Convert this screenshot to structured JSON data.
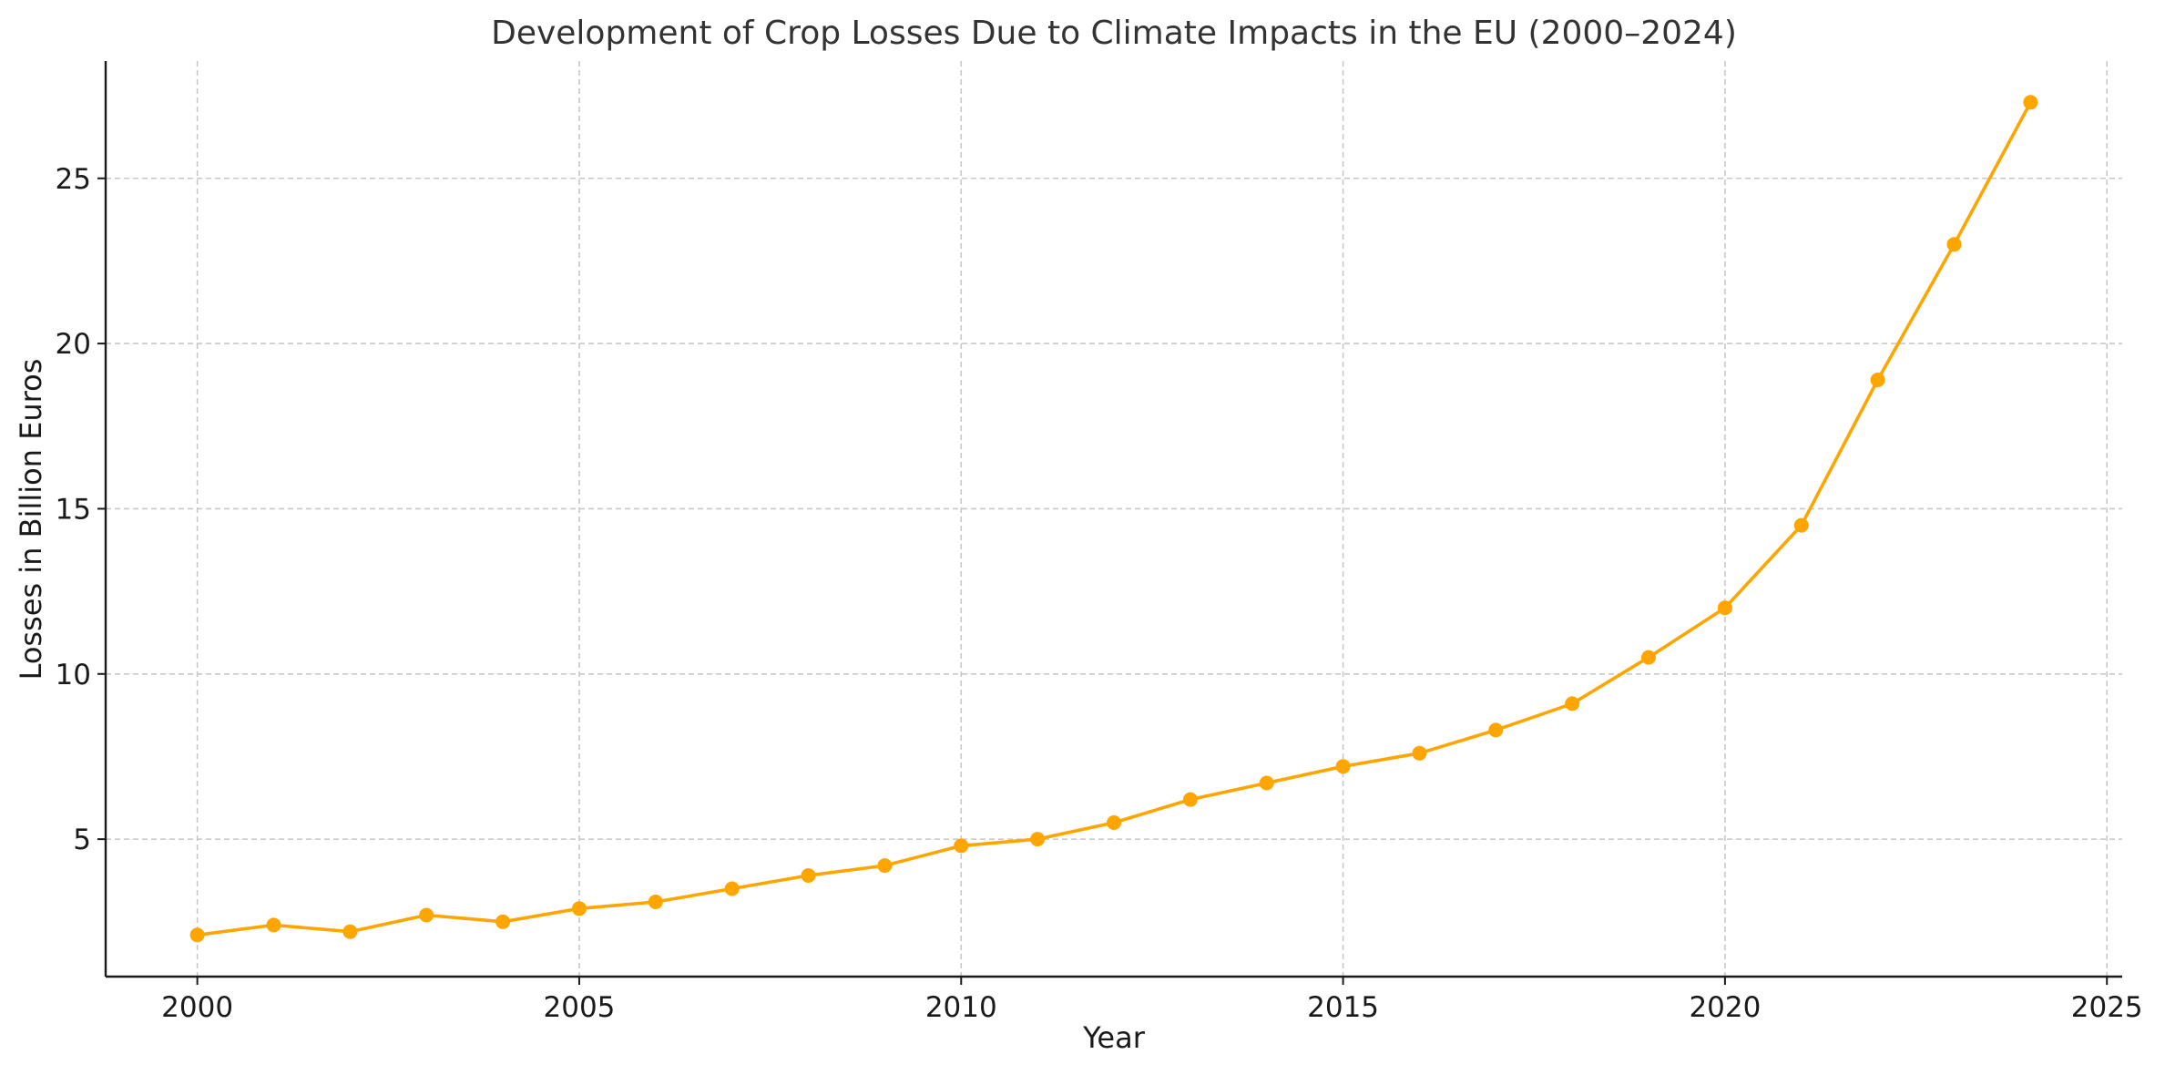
{
  "chart_data": {
    "type": "line",
    "title": "Development of Crop Losses Due to Climate Impacts in the EU (2000–2024)",
    "xlabel": "Year",
    "ylabel": "Losses in Billion Euros",
    "xlim": [
      1998.8,
      2025.2
    ],
    "ylim": [
      0.84,
      28.55
    ],
    "x_ticks": [
      2000,
      2005,
      2010,
      2015,
      2020,
      2025
    ],
    "y_ticks": [
      5,
      10,
      15,
      20,
      25
    ],
    "grid": true,
    "series": [
      {
        "color": "#FFA500",
        "x": [
          2000,
          2001,
          2002,
          2003,
          2004,
          2005,
          2006,
          2007,
          2008,
          2009,
          2010,
          2011,
          2012,
          2013,
          2014,
          2015,
          2016,
          2017,
          2018,
          2019,
          2020,
          2021,
          2022,
          2023,
          2024
        ],
        "values": [
          2.1,
          2.4,
          2.2,
          2.7,
          2.5,
          2.9,
          3.1,
          3.5,
          3.9,
          4.2,
          4.8,
          5.0,
          5.5,
          6.2,
          6.7,
          7.2,
          7.6,
          8.3,
          9.1,
          10.5,
          12.0,
          14.5,
          18.9,
          23.0,
          27.3
        ]
      }
    ]
  }
}
